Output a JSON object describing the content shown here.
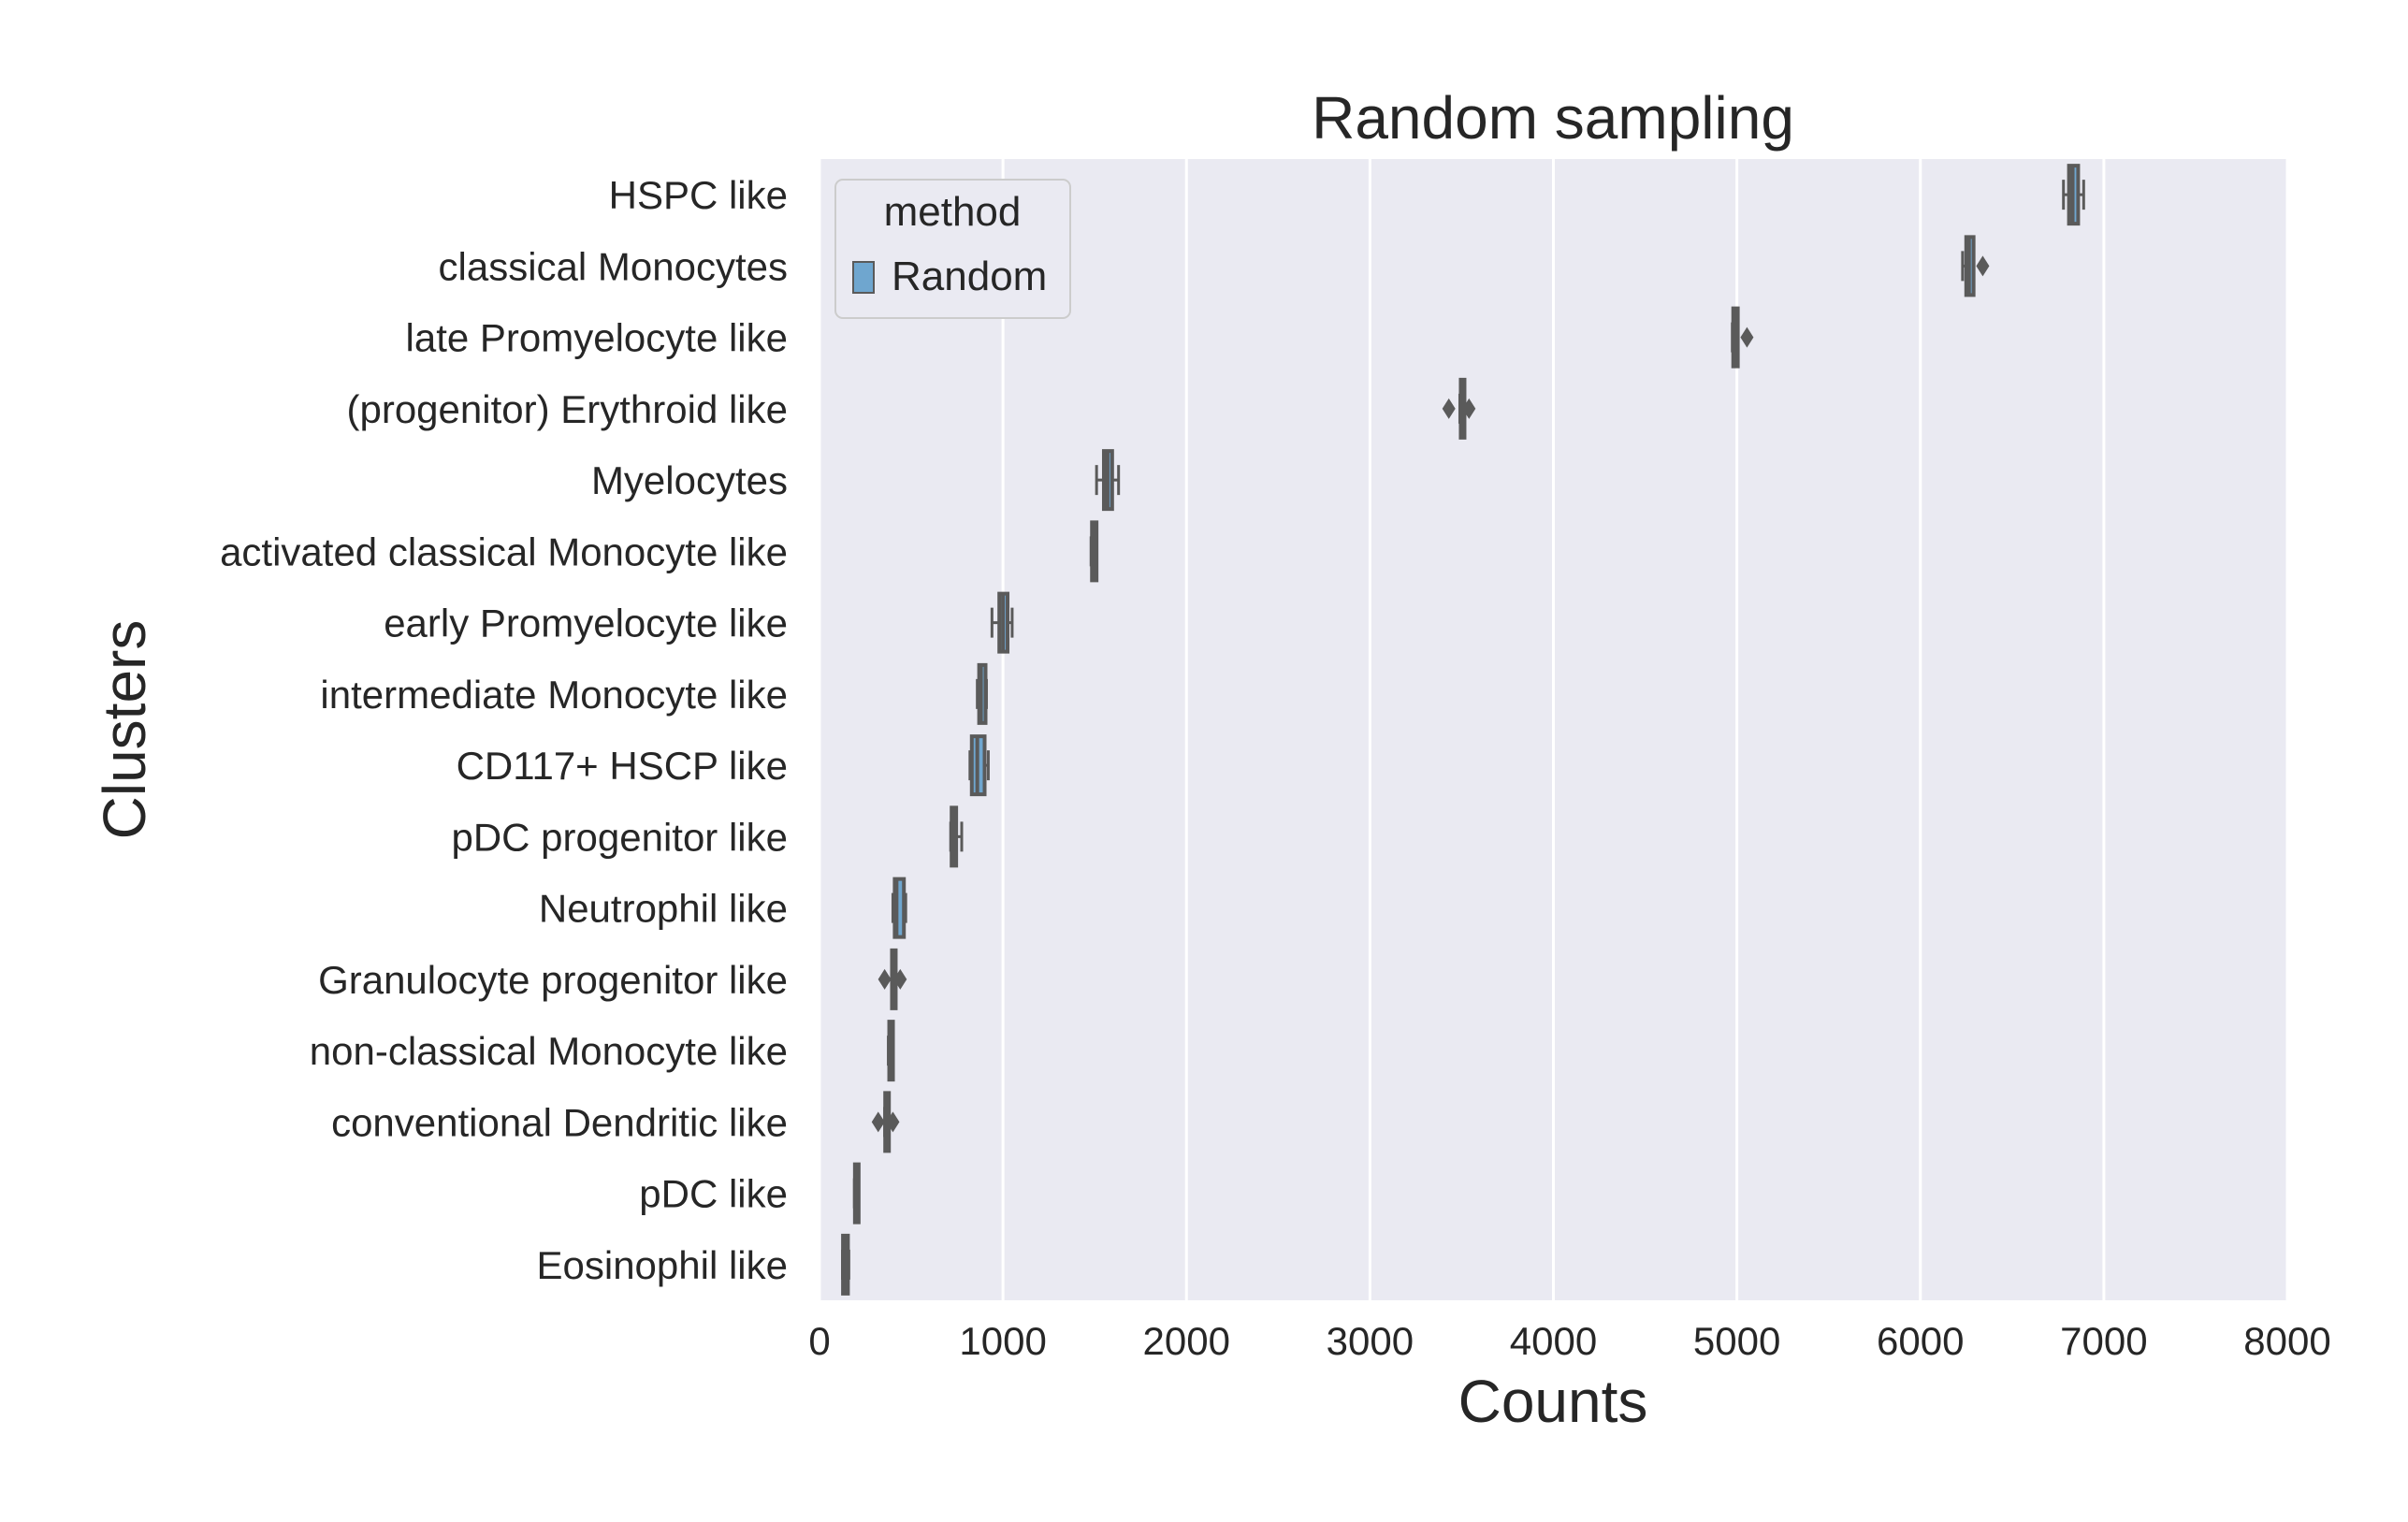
{
  "chart_data": {
    "type": "boxplot",
    "title": "Random sampling",
    "xlabel": "Counts",
    "ylabel": "Clusters",
    "xlim": [
      0,
      8000
    ],
    "xticks": [
      0,
      1000,
      2000,
      3000,
      4000,
      5000,
      6000,
      7000,
      8000
    ],
    "orientation": "horizontal",
    "grid": true,
    "legend": {
      "title": "method",
      "position": "top-left",
      "entries": [
        {
          "label": "Random",
          "color": "#6fa6cf"
        }
      ]
    },
    "colors": {
      "box_fill": "#6fa6cf",
      "line": "#5a5a5a",
      "plot_background": "#eaeaf2",
      "grid": "#ffffff"
    },
    "categories": [
      "HSPC like",
      "classical Monocytes",
      "late Promyelocyte like",
      "(progenitor) Erythroid like",
      "Myelocytes",
      "activated classical Monocyte like",
      "early Promyelocyte like",
      "intermediate Monocyte like",
      "CD117+ HSCP like",
      "pDC progenitor like",
      "Neutrophil like",
      "Granulocyte progenitor like",
      "non-classical Monocyte like",
      "conventional Dendritic like",
      "pDC like",
      "Eosinophil like"
    ],
    "series": [
      {
        "name": "Random",
        "boxes": [
          {
            "whislo": 6780,
            "q1": 6810,
            "med": 6830,
            "q3": 6860,
            "whishi": 6890,
            "fliers": []
          },
          {
            "whislo": 6230,
            "q1": 6250,
            "med": 6265,
            "q3": 6290,
            "whishi": 6290,
            "fliers": [
              6340
            ]
          },
          {
            "whislo": 4975,
            "q1": 4980,
            "med": 4995,
            "q3": 5005,
            "whishi": 5005,
            "fliers": [
              5055
            ]
          },
          {
            "whislo": 3490,
            "q1": 3495,
            "med": 3500,
            "q3": 3510,
            "whishi": 3510,
            "fliers": [
              3430,
              3540
            ]
          },
          {
            "whislo": 1510,
            "q1": 1550,
            "med": 1570,
            "q3": 1595,
            "whishi": 1630,
            "fliers": []
          },
          {
            "whislo": 1480,
            "q1": 1485,
            "med": 1495,
            "q3": 1510,
            "whishi": 1510,
            "fliers": []
          },
          {
            "whislo": 940,
            "q1": 980,
            "med": 1000,
            "q3": 1025,
            "whishi": 1050,
            "fliers": []
          },
          {
            "whislo": 860,
            "q1": 870,
            "med": 880,
            "q3": 905,
            "whishi": 910,
            "fliers": []
          },
          {
            "whislo": 820,
            "q1": 830,
            "med": 860,
            "q3": 900,
            "whishi": 920,
            "fliers": []
          },
          {
            "whislo": 715,
            "q1": 720,
            "med": 730,
            "q3": 745,
            "whishi": 775,
            "fliers": []
          },
          {
            "whislo": 400,
            "q1": 410,
            "med": 420,
            "q3": 460,
            "whishi": 470,
            "fliers": []
          },
          {
            "whislo": 395,
            "q1": 395,
            "med": 400,
            "q3": 410,
            "whishi": 410,
            "fliers": [
              355,
              440
            ]
          },
          {
            "whislo": 375,
            "q1": 380,
            "med": 385,
            "q3": 395,
            "whishi": 400,
            "fliers": []
          },
          {
            "whislo": 355,
            "q1": 358,
            "med": 360,
            "q3": 370,
            "whishi": 375,
            "fliers": [
              320,
              400
            ]
          },
          {
            "whislo": 190,
            "q1": 193,
            "med": 198,
            "q3": 203,
            "whishi": 205,
            "fliers": []
          },
          {
            "whislo": 125,
            "q1": 128,
            "med": 135,
            "q3": 155,
            "whishi": 160,
            "fliers": []
          }
        ]
      }
    ]
  }
}
